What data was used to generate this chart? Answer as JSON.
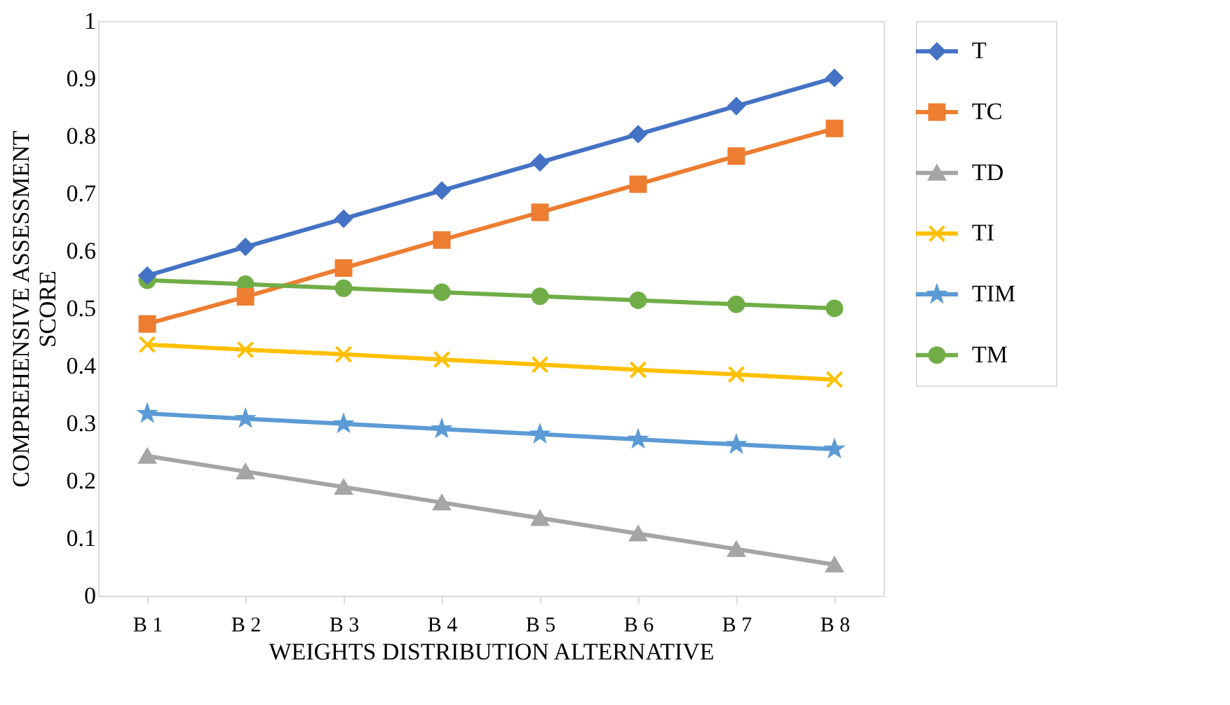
{
  "chart_data": {
    "type": "line",
    "xlabel": "WEIGHTS DISTRIBUTION ALTERNATIVE",
    "ylabel": "COMPREHENSIVE ASSESSMENT SCORE",
    "categories": [
      "B 1",
      "B 2",
      "B 3",
      "B 4",
      "B 5",
      "B 6",
      "B 7",
      "B 8"
    ],
    "series": [
      {
        "name": "T",
        "color": "#4472c4",
        "marker": "diamond",
        "values": [
          0.557,
          0.607,
          0.656,
          0.705,
          0.754,
          0.803,
          0.852,
          0.901
        ]
      },
      {
        "name": "TC",
        "color": "#ed7d31",
        "marker": "square",
        "values": [
          0.473,
          0.52,
          0.57,
          0.619,
          0.667,
          0.716,
          0.765,
          0.813
        ]
      },
      {
        "name": "TD",
        "color": "#a5a5a5",
        "marker": "triangle",
        "values": [
          0.243,
          0.216,
          0.189,
          0.162,
          0.135,
          0.108,
          0.081,
          0.054
        ]
      },
      {
        "name": "TI",
        "color": "#ffc000",
        "marker": "cross",
        "values": [
          0.437,
          0.428,
          0.42,
          0.411,
          0.402,
          0.393,
          0.385,
          0.376
        ]
      },
      {
        "name": "TIM",
        "color": "#5b9bd5",
        "marker": "star",
        "values": [
          0.317,
          0.308,
          0.299,
          0.29,
          0.281,
          0.272,
          0.263,
          0.255
        ]
      },
      {
        "name": "TM",
        "color": "#70ad47",
        "marker": "circle",
        "values": [
          0.549,
          0.542,
          0.535,
          0.528,
          0.521,
          0.514,
          0.507,
          0.5
        ]
      }
    ],
    "ylim": [
      0,
      1
    ],
    "yticks": [
      0,
      0.1,
      0.2,
      0.3,
      0.4,
      0.5,
      0.6,
      0.7,
      0.8,
      0.9,
      1
    ],
    "grid": false,
    "legend": "right",
    "line_style": "solid"
  }
}
